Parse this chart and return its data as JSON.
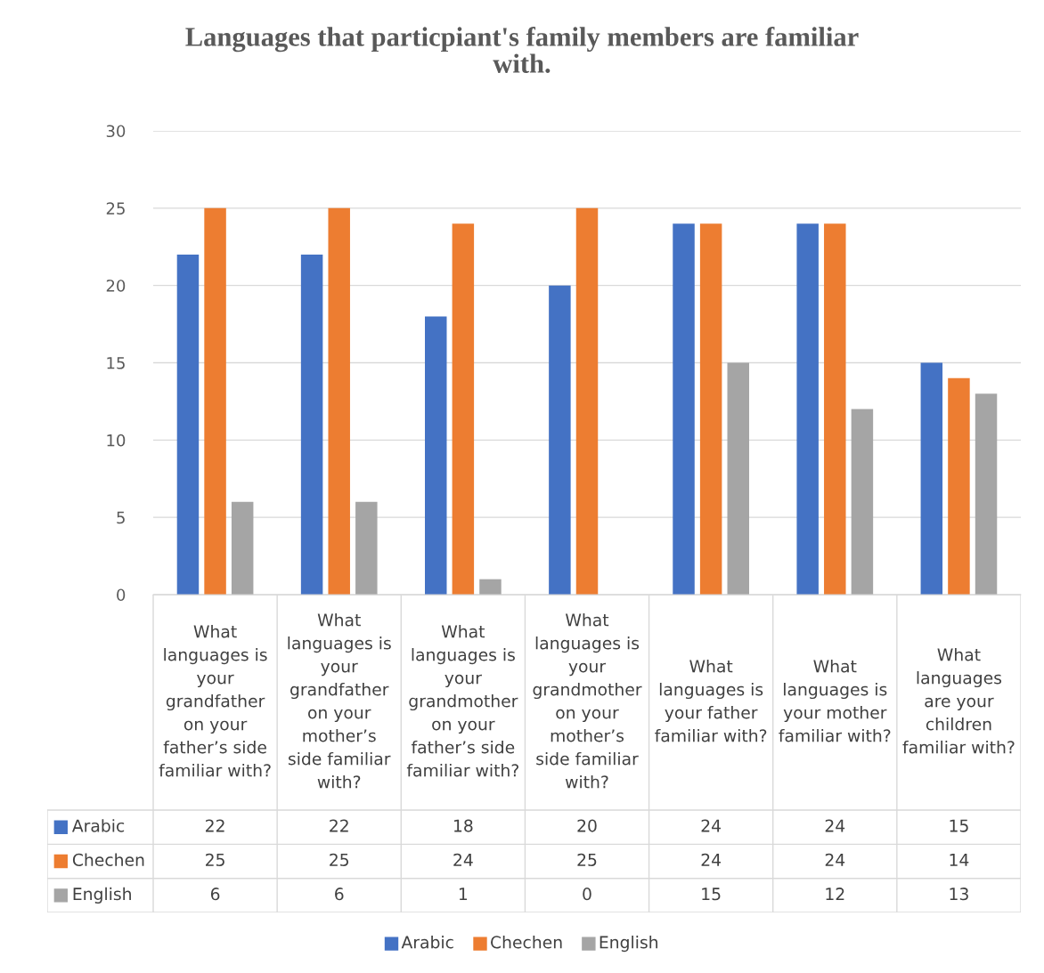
{
  "chart_data": {
    "type": "bar",
    "title": "Languages that particpiant's family members are familiar with.",
    "categories": [
      "What languages is your grandfather on your father’s side familiar with?",
      "What languages is your grandfather on your mother’s side familiar with?",
      "What languages is your grandmother on your father’s side familiar with?",
      "What languages is your grandmother on your mother’s side familiar with?",
      "What languages is your father familiar with?",
      "What languages is your mother familiar with?",
      "What languages are your children familiar with?"
    ],
    "series": [
      {
        "name": "Arabic",
        "color": "#4472c4",
        "values": [
          22,
          22,
          18,
          20,
          24,
          24,
          15
        ]
      },
      {
        "name": "Chechen",
        "color": "#ed7d31",
        "values": [
          25,
          25,
          24,
          25,
          24,
          24,
          14
        ]
      },
      {
        "name": "English",
        "color": "#a5a5a5",
        "values": [
          6,
          6,
          1,
          0,
          15,
          12,
          13
        ]
      }
    ],
    "ylim": [
      0,
      30
    ],
    "yticks": [
      0,
      5,
      10,
      15,
      20,
      25,
      30
    ],
    "grid": "y",
    "legend": "bottom",
    "data_labels": true
  }
}
